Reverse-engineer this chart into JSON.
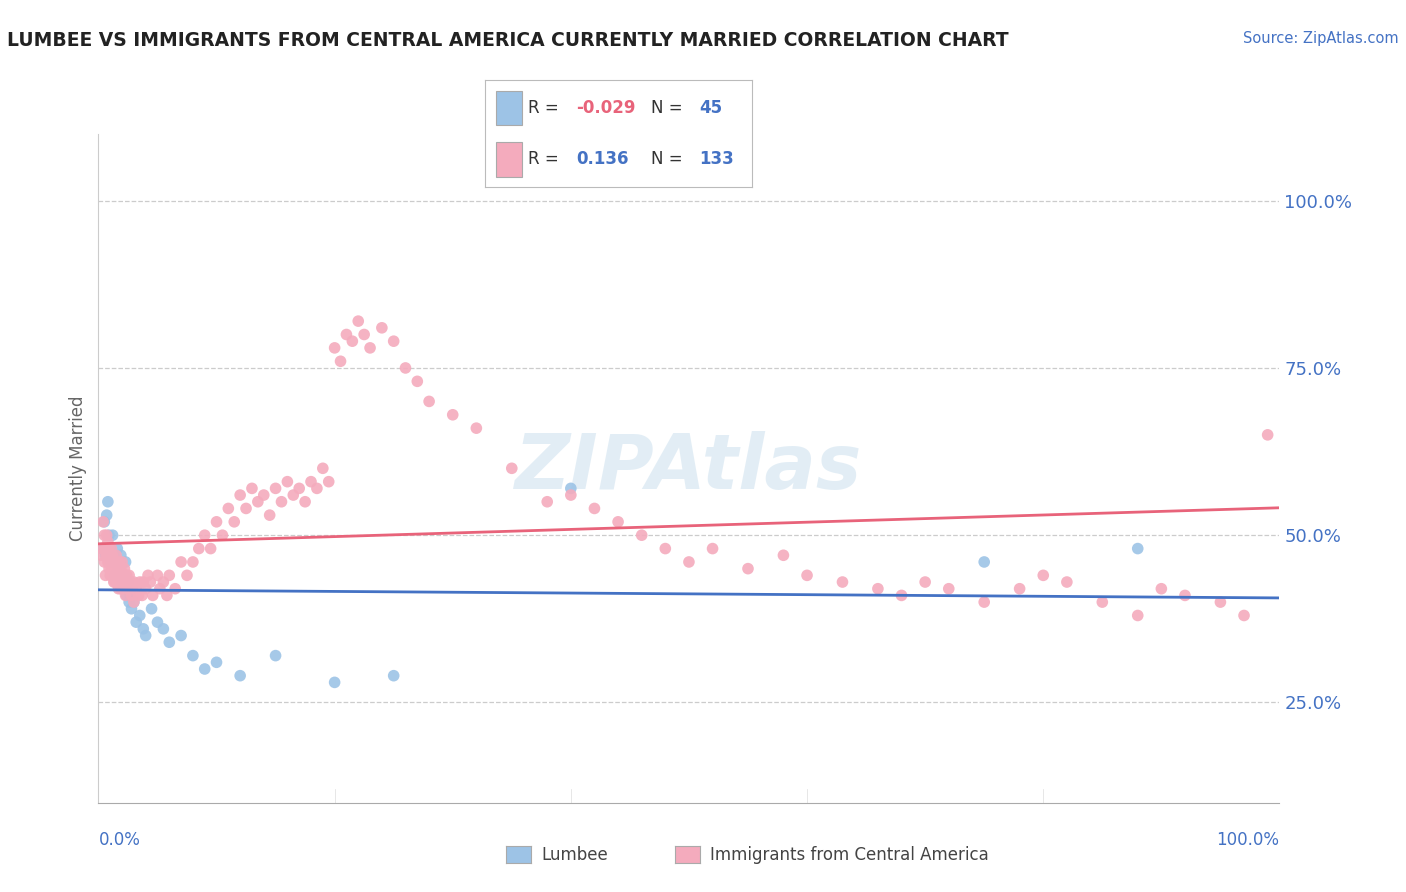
{
  "title": "LUMBEE VS IMMIGRANTS FROM CENTRAL AMERICA CURRENTLY MARRIED CORRELATION CHART",
  "source_text": "Source: ZipAtlas.com",
  "ylabel": "Currently Married",
  "watermark": "ZIPAtlas",
  "blue_R": -0.029,
  "blue_N": 45,
  "pink_R": 0.136,
  "pink_N": 133,
  "blue_color": "#9DC3E6",
  "pink_color": "#F4ABBD",
  "blue_line_color": "#4472C4",
  "pink_line_color": "#E8637A",
  "blue_scatter": [
    [
      0.3,
      48.0
    ],
    [
      0.5,
      52.0
    ],
    [
      0.6,
      47.0
    ],
    [
      0.7,
      53.0
    ],
    [
      0.8,
      55.0
    ],
    [
      0.9,
      50.0
    ],
    [
      1.0,
      48.0
    ],
    [
      1.1,
      46.0
    ],
    [
      1.2,
      50.0
    ],
    [
      1.3,
      47.0
    ],
    [
      1.4,
      44.0
    ],
    [
      1.5,
      46.0
    ],
    [
      1.6,
      48.0
    ],
    [
      1.7,
      45.0
    ],
    [
      1.8,
      44.0
    ],
    [
      1.9,
      47.0
    ],
    [
      2.0,
      43.0
    ],
    [
      2.1,
      42.0
    ],
    [
      2.2,
      44.0
    ],
    [
      2.3,
      46.0
    ],
    [
      2.4,
      41.0
    ],
    [
      2.5,
      43.0
    ],
    [
      2.6,
      40.0
    ],
    [
      2.7,
      41.0
    ],
    [
      2.8,
      39.0
    ],
    [
      3.0,
      40.0
    ],
    [
      3.2,
      37.0
    ],
    [
      3.5,
      38.0
    ],
    [
      3.8,
      36.0
    ],
    [
      4.0,
      35.0
    ],
    [
      4.5,
      39.0
    ],
    [
      5.0,
      37.0
    ],
    [
      5.5,
      36.0
    ],
    [
      6.0,
      34.0
    ],
    [
      7.0,
      35.0
    ],
    [
      8.0,
      32.0
    ],
    [
      9.0,
      30.0
    ],
    [
      10.0,
      31.0
    ],
    [
      12.0,
      29.0
    ],
    [
      15.0,
      32.0
    ],
    [
      20.0,
      28.0
    ],
    [
      25.0,
      29.0
    ],
    [
      40.0,
      57.0
    ],
    [
      75.0,
      46.0
    ],
    [
      88.0,
      48.0
    ]
  ],
  "pink_scatter": [
    [
      0.2,
      47.0
    ],
    [
      0.3,
      48.0
    ],
    [
      0.4,
      52.0
    ],
    [
      0.5,
      50.0
    ],
    [
      0.5,
      46.0
    ],
    [
      0.6,
      48.0
    ],
    [
      0.6,
      44.0
    ],
    [
      0.7,
      50.0
    ],
    [
      0.7,
      47.0
    ],
    [
      0.8,
      46.0
    ],
    [
      0.8,
      49.0
    ],
    [
      0.9,
      45.0
    ],
    [
      0.9,
      48.0
    ],
    [
      1.0,
      47.0
    ],
    [
      1.0,
      44.0
    ],
    [
      1.0,
      46.0
    ],
    [
      1.1,
      48.0
    ],
    [
      1.1,
      45.0
    ],
    [
      1.2,
      47.0
    ],
    [
      1.2,
      44.0
    ],
    [
      1.3,
      46.0
    ],
    [
      1.3,
      43.0
    ],
    [
      1.4,
      45.0
    ],
    [
      1.4,
      43.0
    ],
    [
      1.5,
      47.0
    ],
    [
      1.5,
      44.0
    ],
    [
      1.6,
      46.0
    ],
    [
      1.6,
      43.0
    ],
    [
      1.7,
      45.0
    ],
    [
      1.7,
      42.0
    ],
    [
      1.8,
      46.0
    ],
    [
      1.8,
      43.0
    ],
    [
      1.9,
      45.0
    ],
    [
      1.9,
      42.0
    ],
    [
      2.0,
      46.0
    ],
    [
      2.0,
      43.0
    ],
    [
      2.1,
      44.0
    ],
    [
      2.1,
      42.0
    ],
    [
      2.2,
      45.0
    ],
    [
      2.2,
      43.0
    ],
    [
      2.3,
      44.0
    ],
    [
      2.3,
      41.0
    ],
    [
      2.4,
      44.0
    ],
    [
      2.4,
      42.0
    ],
    [
      2.5,
      43.0
    ],
    [
      2.6,
      44.0
    ],
    [
      2.7,
      43.0
    ],
    [
      2.8,
      41.0
    ],
    [
      2.9,
      42.0
    ],
    [
      3.0,
      43.0
    ],
    [
      3.0,
      40.0
    ],
    [
      3.2,
      42.0
    ],
    [
      3.4,
      41.0
    ],
    [
      3.5,
      43.0
    ],
    [
      3.7,
      41.0
    ],
    [
      3.8,
      43.0
    ],
    [
      4.0,
      42.0
    ],
    [
      4.2,
      44.0
    ],
    [
      4.4,
      43.0
    ],
    [
      4.6,
      41.0
    ],
    [
      5.0,
      44.0
    ],
    [
      5.2,
      42.0
    ],
    [
      5.5,
      43.0
    ],
    [
      5.8,
      41.0
    ],
    [
      6.0,
      44.0
    ],
    [
      6.5,
      42.0
    ],
    [
      7.0,
      46.0
    ],
    [
      7.5,
      44.0
    ],
    [
      8.0,
      46.0
    ],
    [
      8.5,
      48.0
    ],
    [
      9.0,
      50.0
    ],
    [
      9.5,
      48.0
    ],
    [
      10.0,
      52.0
    ],
    [
      10.5,
      50.0
    ],
    [
      11.0,
      54.0
    ],
    [
      11.5,
      52.0
    ],
    [
      12.0,
      56.0
    ],
    [
      12.5,
      54.0
    ],
    [
      13.0,
      57.0
    ],
    [
      13.5,
      55.0
    ],
    [
      14.0,
      56.0
    ],
    [
      14.5,
      53.0
    ],
    [
      15.0,
      57.0
    ],
    [
      15.5,
      55.0
    ],
    [
      16.0,
      58.0
    ],
    [
      16.5,
      56.0
    ],
    [
      17.0,
      57.0
    ],
    [
      17.5,
      55.0
    ],
    [
      18.0,
      58.0
    ],
    [
      18.5,
      57.0
    ],
    [
      19.0,
      60.0
    ],
    [
      19.5,
      58.0
    ],
    [
      20.0,
      78.0
    ],
    [
      20.5,
      76.0
    ],
    [
      21.0,
      80.0
    ],
    [
      21.5,
      79.0
    ],
    [
      22.0,
      82.0
    ],
    [
      22.5,
      80.0
    ],
    [
      23.0,
      78.0
    ],
    [
      24.0,
      81.0
    ],
    [
      25.0,
      79.0
    ],
    [
      26.0,
      75.0
    ],
    [
      27.0,
      73.0
    ],
    [
      28.0,
      70.0
    ],
    [
      30.0,
      68.0
    ],
    [
      32.0,
      66.0
    ],
    [
      35.0,
      60.0
    ],
    [
      38.0,
      55.0
    ],
    [
      40.0,
      56.0
    ],
    [
      42.0,
      54.0
    ],
    [
      44.0,
      52.0
    ],
    [
      46.0,
      50.0
    ],
    [
      48.0,
      48.0
    ],
    [
      50.0,
      46.0
    ],
    [
      52.0,
      48.0
    ],
    [
      55.0,
      45.0
    ],
    [
      58.0,
      47.0
    ],
    [
      60.0,
      44.0
    ],
    [
      63.0,
      43.0
    ],
    [
      66.0,
      42.0
    ],
    [
      68.0,
      41.0
    ],
    [
      70.0,
      43.0
    ],
    [
      72.0,
      42.0
    ],
    [
      75.0,
      40.0
    ],
    [
      78.0,
      42.0
    ],
    [
      80.0,
      44.0
    ],
    [
      82.0,
      43.0
    ],
    [
      85.0,
      40.0
    ],
    [
      88.0,
      38.0
    ],
    [
      90.0,
      42.0
    ],
    [
      92.0,
      41.0
    ],
    [
      95.0,
      40.0
    ],
    [
      97.0,
      38.0
    ],
    [
      99.0,
      65.0
    ]
  ],
  "y_tick_labels": [
    "25.0%",
    "50.0%",
    "75.0%",
    "100.0%"
  ],
  "y_tick_values": [
    25,
    50,
    75,
    100
  ],
  "xlim": [
    0,
    100
  ],
  "ylim": [
    10,
    110
  ],
  "background_color": "#FFFFFF",
  "plot_bg_color": "#FFFFFF",
  "grid_color": "#CCCCCC",
  "legend_blue_R": "-0.029",
  "legend_blue_N": "45",
  "legend_pink_R": "0.136",
  "legend_pink_N": "133"
}
